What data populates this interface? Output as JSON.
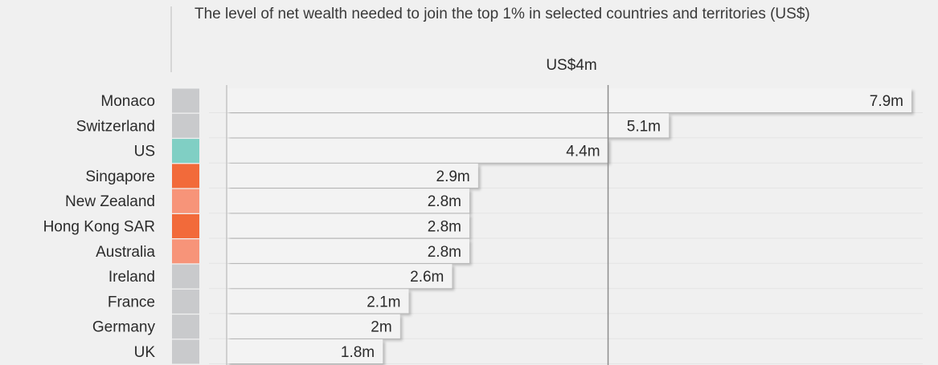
{
  "chart_data": {
    "type": "bar",
    "orientation": "horizontal",
    "title": "The level of net wealth needed to join the top 1% in selected countries and territories (US$)",
    "reference_line": {
      "value": 4.4,
      "label": "US$4m"
    },
    "categories": [
      "Monaco",
      "Switzerland",
      "US",
      "Singapore",
      "New Zealand",
      "Hong Kong SAR",
      "Australia",
      "Ireland",
      "France",
      "Germany",
      "UK"
    ],
    "values": [
      7.9,
      5.1,
      4.4,
      2.9,
      2.8,
      2.8,
      2.8,
      2.6,
      2.1,
      2.0,
      1.8
    ],
    "value_labels": [
      "7.9m",
      "5.1m",
      "4.4m",
      "2.9m",
      "2.8m",
      "2.8m",
      "2.8m",
      "2.6m",
      "2.1m",
      "2m",
      "1.8m"
    ],
    "swatch_colors": [
      "#c9cacc",
      "#c9cacc",
      "#80cfc4",
      "#f26a3a",
      "#f79479",
      "#f26a3a",
      "#f79479",
      "#c9cacc",
      "#c9cacc",
      "#c9cacc",
      "#c9cacc"
    ],
    "bar_color": "#f3f3f3",
    "grid": true
  }
}
